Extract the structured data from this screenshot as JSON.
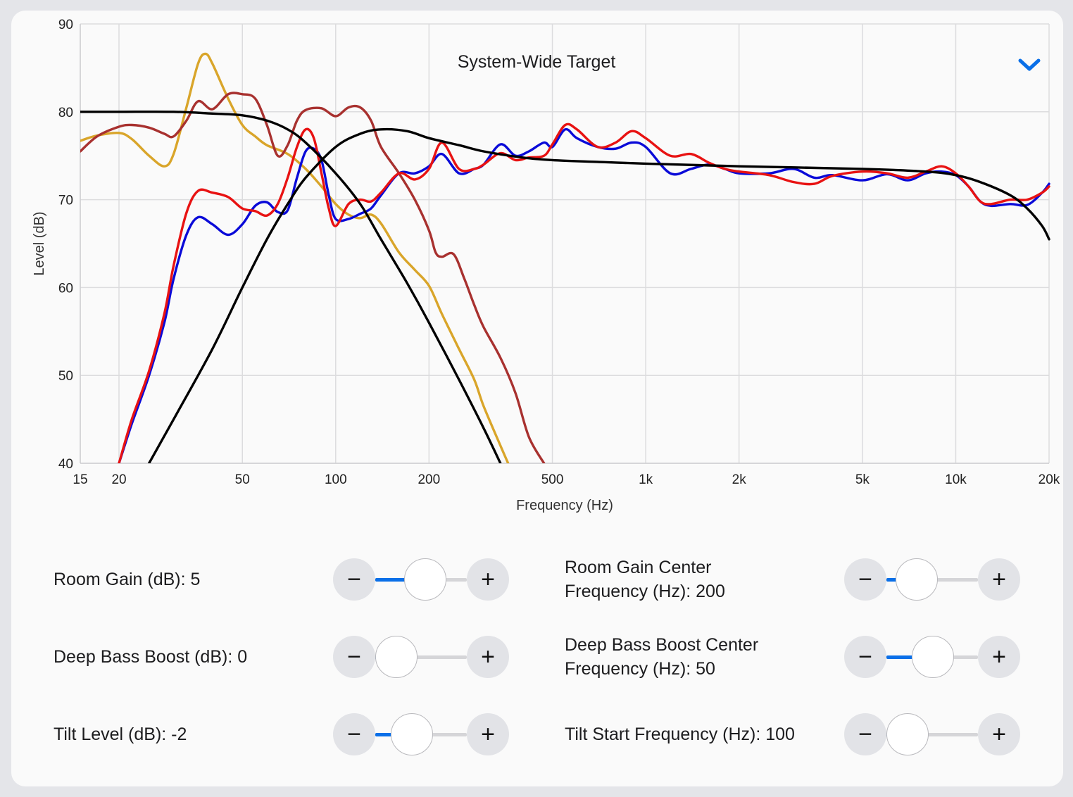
{
  "chart_data": {
    "type": "line",
    "title": "System-Wide Target",
    "xlabel": "Frequency (Hz)",
    "ylabel": "Level (dB)",
    "xscale": "log",
    "xlim": [
      15,
      20000
    ],
    "ylim": [
      40,
      90
    ],
    "grid": true,
    "xticks": [
      15,
      20,
      50,
      100,
      200,
      500,
      1000,
      2000,
      5000,
      10000,
      20000
    ],
    "xtick_labels": [
      "15",
      "20",
      "50",
      "100",
      "200",
      "500",
      "1k",
      "2k",
      "5k",
      "10k",
      "20k"
    ],
    "yticks": [
      40,
      50,
      60,
      70,
      80,
      90
    ],
    "ytick_labels": [
      "40",
      "50",
      "60",
      "70",
      "80",
      "90"
    ],
    "series": [
      {
        "color": "#d9a52a",
        "points": [
          [
            15,
            76.7
          ],
          [
            17,
            77.3
          ],
          [
            20,
            77.6
          ],
          [
            22,
            76.9
          ],
          [
            25,
            75.0
          ],
          [
            28,
            73.8
          ],
          [
            30,
            75.2
          ],
          [
            33,
            80.5
          ],
          [
            36,
            85.5
          ],
          [
            38,
            86.6
          ],
          [
            40,
            85.5
          ],
          [
            45,
            81.5
          ],
          [
            50,
            78.5
          ],
          [
            55,
            77.2
          ],
          [
            60,
            76.2
          ],
          [
            70,
            75.2
          ],
          [
            80,
            73.5
          ],
          [
            90,
            71.5
          ],
          [
            100,
            69.5
          ],
          [
            110,
            68.3
          ],
          [
            120,
            67.9
          ],
          [
            130,
            68.3
          ],
          [
            140,
            67.3
          ],
          [
            160,
            64.0
          ],
          [
            180,
            62.0
          ],
          [
            200,
            60.2
          ],
          [
            220,
            57.0
          ],
          [
            250,
            53.0
          ],
          [
            280,
            49.5
          ],
          [
            300,
            46.5
          ],
          [
            340,
            42.0
          ],
          [
            360,
            40.0
          ]
        ]
      },
      {
        "color": "#a8312f",
        "points": [
          [
            15,
            75.5
          ],
          [
            17,
            77.2
          ],
          [
            20,
            78.3
          ],
          [
            22,
            78.5
          ],
          [
            25,
            78.2
          ],
          [
            28,
            77.5
          ],
          [
            30,
            77.2
          ],
          [
            33,
            79.0
          ],
          [
            36,
            81.2
          ],
          [
            40,
            80.3
          ],
          [
            45,
            82.0
          ],
          [
            50,
            82.0
          ],
          [
            55,
            81.5
          ],
          [
            60,
            78.5
          ],
          [
            65,
            75.0
          ],
          [
            70,
            76.2
          ],
          [
            75,
            79.0
          ],
          [
            80,
            80.2
          ],
          [
            90,
            80.4
          ],
          [
            100,
            79.5
          ],
          [
            110,
            80.5
          ],
          [
            120,
            80.5
          ],
          [
            130,
            79.0
          ],
          [
            140,
            76.0
          ],
          [
            160,
            73.0
          ],
          [
            180,
            70.0
          ],
          [
            200,
            66.5
          ],
          [
            210,
            64.0
          ],
          [
            220,
            63.5
          ],
          [
            240,
            63.8
          ],
          [
            260,
            61.0
          ],
          [
            280,
            58.0
          ],
          [
            300,
            55.5
          ],
          [
            340,
            52.0
          ],
          [
            380,
            48.0
          ],
          [
            420,
            43.0
          ],
          [
            470,
            40.0
          ]
        ]
      },
      {
        "color": "#0a0ad8",
        "points": [
          [
            20,
            40.0
          ],
          [
            22,
            44.5
          ],
          [
            25,
            50.0
          ],
          [
            28,
            56.0
          ],
          [
            30,
            61.0
          ],
          [
            33,
            66.0
          ],
          [
            36,
            68.0
          ],
          [
            40,
            67.2
          ],
          [
            45,
            66.0
          ],
          [
            50,
            67.2
          ],
          [
            55,
            69.3
          ],
          [
            60,
            69.7
          ],
          [
            65,
            68.6
          ],
          [
            70,
            68.8
          ],
          [
            75,
            72.5
          ],
          [
            80,
            75.5
          ],
          [
            85,
            75.8
          ],
          [
            90,
            74.5
          ],
          [
            95,
            70.5
          ],
          [
            100,
            67.8
          ],
          [
            110,
            67.8
          ],
          [
            120,
            68.4
          ],
          [
            130,
            69.0
          ],
          [
            140,
            70.5
          ],
          [
            160,
            73.0
          ],
          [
            180,
            73.0
          ],
          [
            200,
            73.8
          ],
          [
            220,
            75.2
          ],
          [
            250,
            73.0
          ],
          [
            280,
            73.5
          ],
          [
            300,
            74.0
          ],
          [
            340,
            76.3
          ],
          [
            380,
            75.0
          ],
          [
            420,
            75.5
          ],
          [
            470,
            76.5
          ],
          [
            500,
            76.0
          ],
          [
            550,
            78.0
          ],
          [
            600,
            77.0
          ],
          [
            700,
            76.0
          ],
          [
            800,
            75.8
          ],
          [
            900,
            76.5
          ],
          [
            1000,
            76.0
          ],
          [
            1200,
            73.0
          ],
          [
            1400,
            73.5
          ],
          [
            1600,
            74.0
          ],
          [
            1800,
            73.5
          ],
          [
            2000,
            73.0
          ],
          [
            2500,
            73.0
          ],
          [
            3000,
            73.5
          ],
          [
            3500,
            72.5
          ],
          [
            4000,
            72.8
          ],
          [
            5000,
            72.2
          ],
          [
            6000,
            72.9
          ],
          [
            7000,
            72.2
          ],
          [
            8000,
            73.0
          ],
          [
            9000,
            73.2
          ],
          [
            10000,
            72.8
          ],
          [
            11000,
            71.5
          ],
          [
            12000,
            69.8
          ],
          [
            13000,
            69.3
          ],
          [
            15000,
            69.5
          ],
          [
            17000,
            69.4
          ],
          [
            19000,
            70.8
          ],
          [
            20000,
            71.8
          ]
        ]
      },
      {
        "color": "#e81212",
        "points": [
          [
            20,
            40.0
          ],
          [
            22,
            45.0
          ],
          [
            25,
            50.5
          ],
          [
            28,
            57.0
          ],
          [
            30,
            62.5
          ],
          [
            33,
            68.5
          ],
          [
            36,
            71.0
          ],
          [
            40,
            70.8
          ],
          [
            45,
            70.3
          ],
          [
            50,
            69.0
          ],
          [
            55,
            68.7
          ],
          [
            60,
            68.2
          ],
          [
            65,
            69.5
          ],
          [
            70,
            72.5
          ],
          [
            75,
            76.0
          ],
          [
            80,
            78.0
          ],
          [
            85,
            77.0
          ],
          [
            90,
            73.0
          ],
          [
            95,
            69.0
          ],
          [
            100,
            67.0
          ],
          [
            110,
            69.5
          ],
          [
            120,
            70.0
          ],
          [
            130,
            69.8
          ],
          [
            140,
            70.8
          ],
          [
            160,
            73.0
          ],
          [
            180,
            72.3
          ],
          [
            200,
            73.5
          ],
          [
            220,
            76.5
          ],
          [
            250,
            73.5
          ],
          [
            280,
            73.5
          ],
          [
            300,
            74.0
          ],
          [
            340,
            75.3
          ],
          [
            380,
            74.5
          ],
          [
            420,
            74.8
          ],
          [
            470,
            75.0
          ],
          [
            500,
            76.3
          ],
          [
            550,
            78.5
          ],
          [
            600,
            78.0
          ],
          [
            700,
            76.0
          ],
          [
            800,
            76.5
          ],
          [
            900,
            77.8
          ],
          [
            1000,
            77.0
          ],
          [
            1200,
            75.0
          ],
          [
            1400,
            75.2
          ],
          [
            1600,
            74.2
          ],
          [
            1800,
            73.5
          ],
          [
            2000,
            73.2
          ],
          [
            2500,
            72.8
          ],
          [
            3000,
            72.0
          ],
          [
            3500,
            71.8
          ],
          [
            4000,
            72.7
          ],
          [
            5000,
            73.2
          ],
          [
            6000,
            73.0
          ],
          [
            7000,
            72.5
          ],
          [
            8000,
            73.2
          ],
          [
            9000,
            73.8
          ],
          [
            10000,
            73.0
          ],
          [
            11000,
            71.5
          ],
          [
            12000,
            69.8
          ],
          [
            13000,
            69.5
          ],
          [
            15000,
            70.0
          ],
          [
            17000,
            70.0
          ],
          [
            19000,
            70.8
          ],
          [
            20000,
            71.5
          ]
        ]
      },
      {
        "color": "#000000",
        "points": [
          [
            15,
            80.0
          ],
          [
            20,
            80.0
          ],
          [
            30,
            80.0
          ],
          [
            40,
            79.8
          ],
          [
            50,
            79.6
          ],
          [
            60,
            79.0
          ],
          [
            70,
            78.0
          ],
          [
            80,
            76.5
          ],
          [
            100,
            73.0
          ],
          [
            120,
            69.5
          ],
          [
            140,
            65.5
          ],
          [
            170,
            60.5
          ],
          [
            200,
            56.0
          ],
          [
            250,
            49.5
          ],
          [
            300,
            44.0
          ],
          [
            340,
            40.0
          ]
        ]
      },
      {
        "color": "#000000",
        "points": [
          [
            25,
            40.0
          ],
          [
            30,
            45.0
          ],
          [
            40,
            53.0
          ],
          [
            50,
            60.0
          ],
          [
            60,
            65.5
          ],
          [
            70,
            69.5
          ],
          [
            80,
            72.5
          ],
          [
            100,
            76.0
          ],
          [
            120,
            77.5
          ],
          [
            140,
            78.0
          ],
          [
            170,
            77.8
          ],
          [
            200,
            77.0
          ],
          [
            250,
            76.2
          ],
          [
            300,
            75.5
          ],
          [
            400,
            74.8
          ],
          [
            500,
            74.5
          ],
          [
            700,
            74.3
          ],
          [
            1000,
            74.1
          ],
          [
            2000,
            73.8
          ],
          [
            5000,
            73.5
          ],
          [
            8000,
            73.2
          ],
          [
            10000,
            72.8
          ],
          [
            12000,
            72.0
          ],
          [
            15000,
            70.5
          ],
          [
            17000,
            69.0
          ],
          [
            19000,
            67.0
          ],
          [
            20000,
            65.5
          ]
        ]
      }
    ]
  },
  "dropdown": {
    "icon": "chevron-down-icon",
    "color": "#0a6fe8"
  },
  "controls": {
    "room_gain": {
      "label": "Room Gain (dB): 5",
      "fraction": 0.58
    },
    "deep_bass_boost": {
      "label": "Deep Bass Boost (dB): 0",
      "fraction": 0.0
    },
    "tilt_level": {
      "label": "Tilt Level (dB): -2",
      "fraction": 0.32
    },
    "room_gain_center": {
      "label": "Room Gain Center Frequency (Hz): 200",
      "fraction": 0.18
    },
    "deep_bass_center": {
      "label": "Deep Bass Boost Center Frequency (Hz): 50",
      "fraction": 0.52
    },
    "tilt_start": {
      "label": "Tilt Start Frequency (Hz): 100",
      "fraction": 0.0
    },
    "minus_symbol": "−",
    "plus_symbol": "+"
  },
  "accent_color": "#0a6fe8"
}
